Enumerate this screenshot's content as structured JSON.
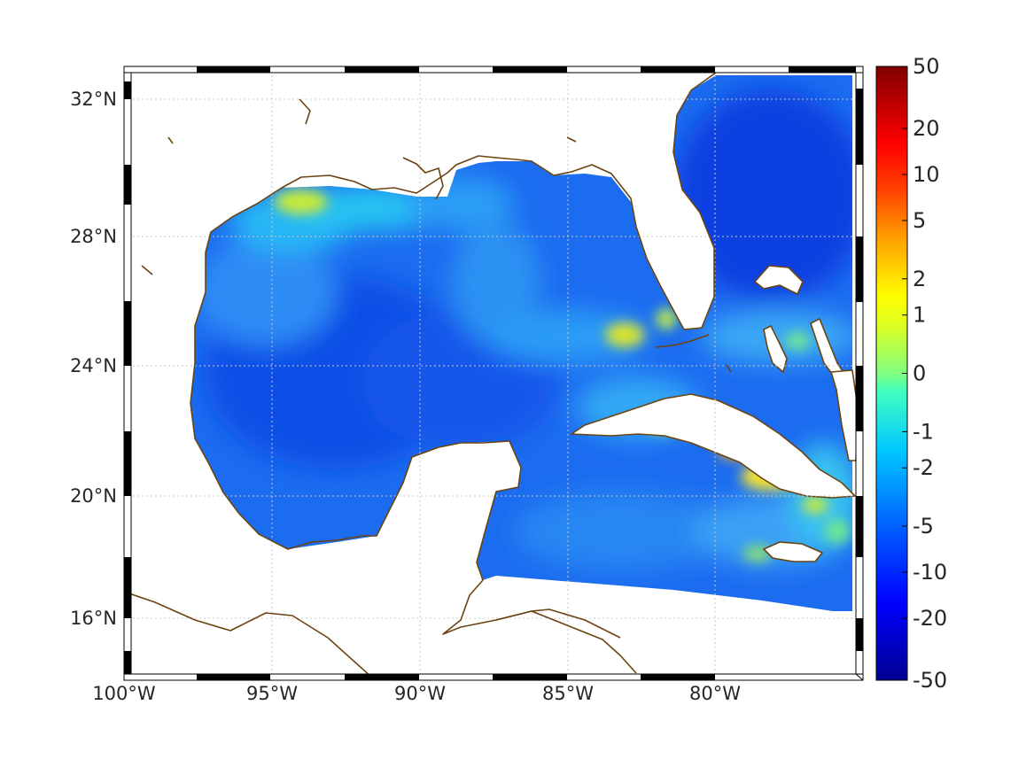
{
  "map": {
    "lon_range": [
      -100,
      -75
    ],
    "lat_range": [
      14.2,
      33.0
    ],
    "lon_ticks": [
      {
        "value": -100,
        "label": "100°W"
      },
      {
        "value": -95,
        "label": "95°W"
      },
      {
        "value": -90,
        "label": "90°W"
      },
      {
        "value": -85,
        "label": "85°W"
      },
      {
        "value": -80,
        "label": "80°W"
      }
    ],
    "lat_ticks": [
      {
        "value": 32,
        "label": "32°N"
      },
      {
        "value": 28,
        "label": "28°N"
      },
      {
        "value": 24,
        "label": "24°N"
      },
      {
        "value": 20,
        "label": "20°N"
      },
      {
        "value": 16,
        "label": "16°N"
      }
    ],
    "grid": true,
    "coastline_color": "#6b4310",
    "frame_style": "alternating black/white border"
  },
  "colorbar": {
    "labels": [
      "50",
      "20",
      "10",
      "5",
      "2",
      "1",
      "0",
      "-1",
      "-2",
      "-5",
      "-10",
      "-20",
      "-50"
    ],
    "colormap": "jet",
    "colors": [
      "#00008f",
      "#0000ff",
      "#0080ff",
      "#00ffff",
      "#80ff80",
      "#ffff00",
      "#ff8000",
      "#ff0000",
      "#800000"
    ]
  }
}
